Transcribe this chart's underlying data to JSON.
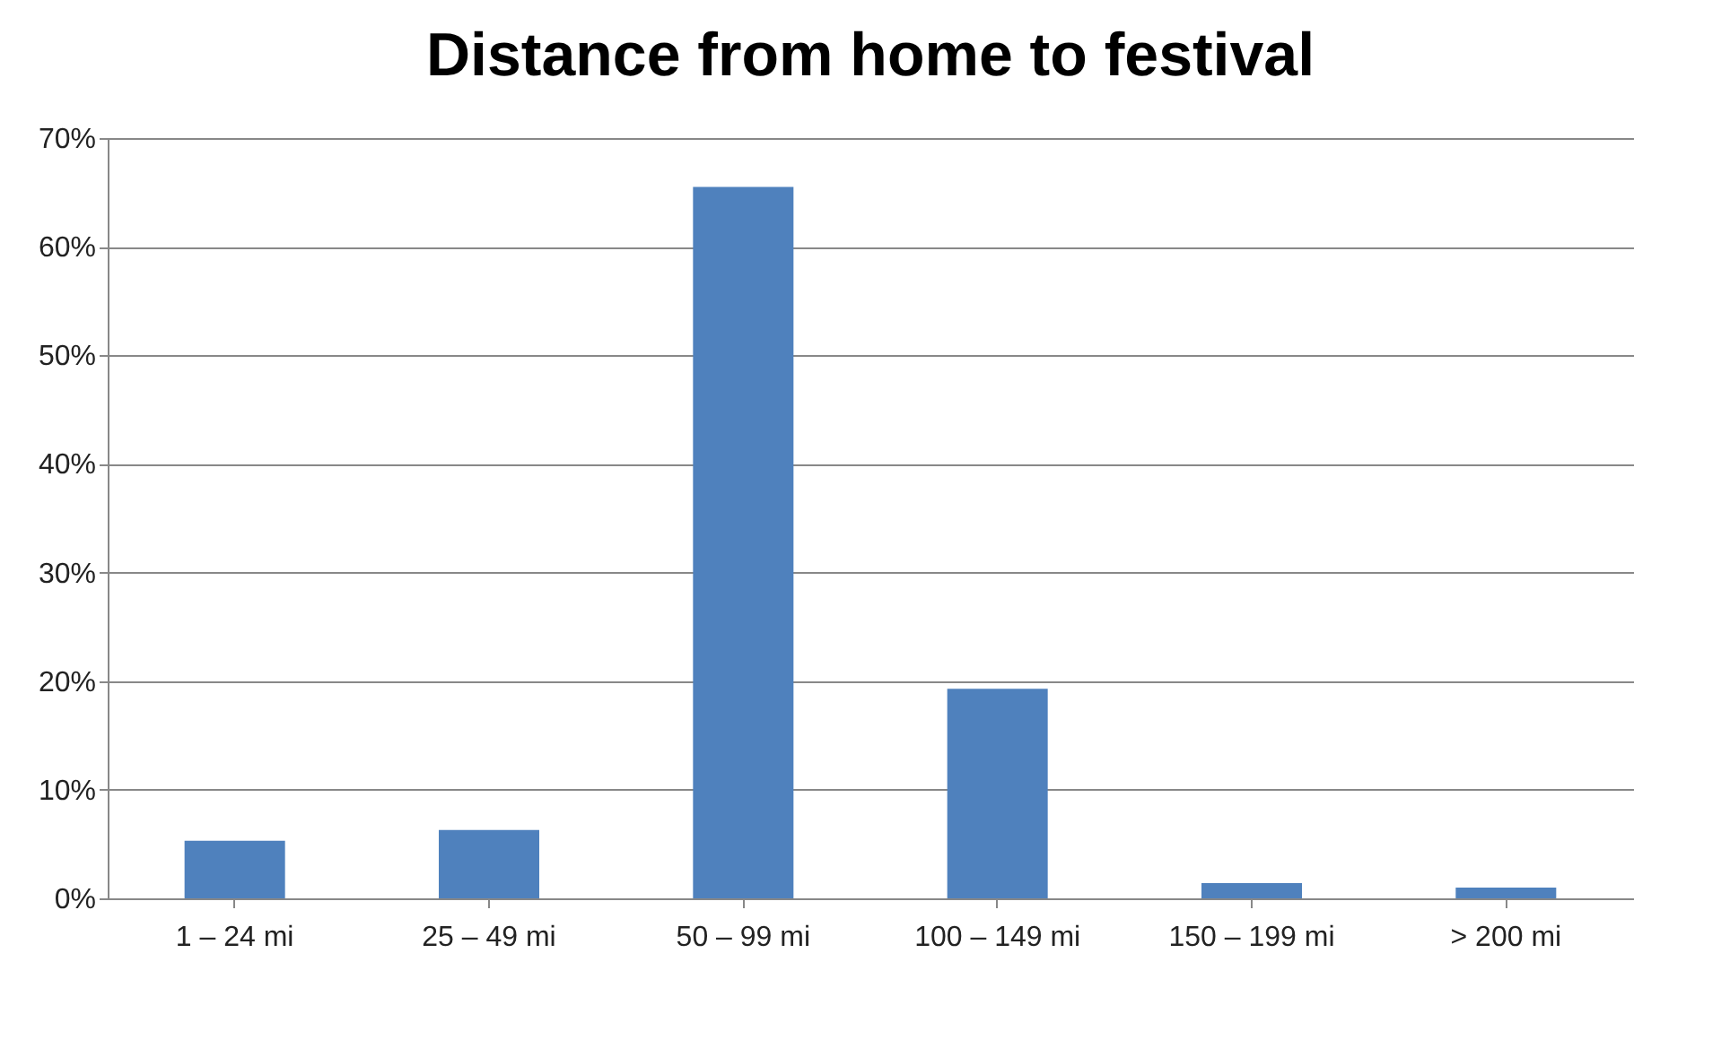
{
  "chart_data": {
    "type": "bar",
    "title": "Distance from home to festival",
    "categories": [
      "1 – 24 mi",
      "25 – 49 mi",
      "50 – 99 mi",
      "100 – 149 mi",
      "150 – 199 mi",
      "> 200 mi"
    ],
    "values": [
      5.3,
      6.3,
      65.5,
      19.3,
      1.4,
      1.0
    ],
    "color": "#4f81bd",
    "ylim": [
      0,
      70
    ],
    "yticks": [
      {
        "value": 0,
        "label": "0%"
      },
      {
        "value": 10,
        "label": "10%"
      },
      {
        "value": 20,
        "label": "20%"
      },
      {
        "value": 30,
        "label": "30%"
      },
      {
        "value": 40,
        "label": "40%"
      },
      {
        "value": 50,
        "label": "50%"
      },
      {
        "value": 60,
        "label": "60%"
      },
      {
        "value": 70,
        "label": "70%"
      }
    ],
    "grid": "y"
  }
}
